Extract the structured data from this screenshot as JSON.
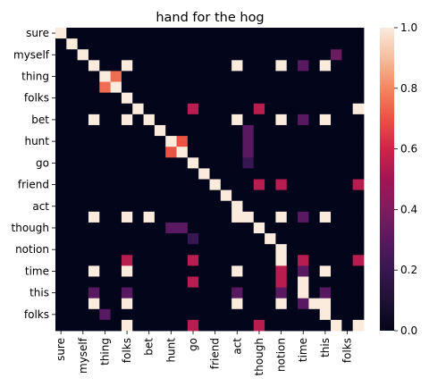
{
  "chart_data": {
    "type": "heatmap",
    "title": "hand for the hog",
    "xlabel": "",
    "ylabel": "",
    "row_labels": [
      "sure",
      "",
      "myself",
      "",
      "thing",
      "",
      "folks",
      "",
      "bet",
      "",
      "hunt",
      "",
      "go",
      "",
      "friend",
      "",
      "act",
      "",
      "though",
      "",
      "notion",
      "",
      "time",
      "",
      "this",
      "",
      "folks",
      ""
    ],
    "col_labels": [
      "sure",
      "",
      "myself",
      "",
      "thing",
      "",
      "folks",
      "",
      "bet",
      "",
      "hunt",
      "",
      "go",
      "",
      "friend",
      "",
      "act",
      "",
      "though",
      "",
      "notion",
      "",
      "time",
      "",
      "this",
      "",
      "folks",
      ""
    ],
    "values": [
      [
        1,
        0,
        0,
        0,
        0,
        0,
        0,
        0,
        0,
        0,
        0,
        0,
        0,
        0,
        0,
        0,
        0,
        0,
        0,
        0,
        0,
        0,
        0,
        0,
        0,
        0,
        0,
        0
      ],
      [
        0,
        1,
        0,
        0,
        0,
        0,
        0,
        0,
        0,
        0,
        0,
        0,
        0,
        0,
        0,
        0,
        0,
        0,
        0,
        0,
        0,
        0,
        0,
        0,
        0,
        0,
        0,
        0
      ],
      [
        0,
        0,
        1,
        0,
        0,
        0,
        0,
        0,
        0,
        0,
        0,
        0,
        0,
        0,
        0,
        0,
        0,
        0,
        0,
        0,
        0,
        0,
        0,
        0,
        0,
        0.35,
        0,
        0
      ],
      [
        0,
        0,
        0,
        1,
        0,
        0,
        1,
        0,
        0,
        0,
        0,
        0,
        0,
        0,
        0,
        0,
        1,
        0,
        0,
        0,
        1,
        0,
        0.3,
        0,
        1,
        0,
        0,
        0
      ],
      [
        0,
        0,
        0,
        0,
        1,
        0.75,
        0,
        0,
        0,
        0,
        0,
        0,
        0,
        0,
        0,
        0,
        0,
        0,
        0,
        0,
        0,
        0,
        0,
        0,
        0,
        0,
        0,
        0
      ],
      [
        0,
        0,
        0,
        0,
        0.75,
        1,
        0,
        0,
        0,
        0,
        0,
        0,
        0,
        0,
        0,
        0,
        0,
        0,
        0,
        0,
        0,
        0,
        0,
        0,
        0,
        0,
        0,
        0
      ],
      [
        0,
        0,
        0,
        0,
        0,
        0,
        1,
        0,
        0,
        0,
        0,
        0,
        0,
        0,
        0,
        0,
        0,
        0,
        0,
        0,
        0,
        0,
        0,
        0,
        0,
        0,
        0,
        0
      ],
      [
        0,
        0,
        0,
        0,
        0,
        0,
        0,
        1,
        0,
        0,
        0,
        0,
        0.55,
        0,
        0,
        0,
        0,
        0,
        0.55,
        0,
        0,
        0,
        0,
        0,
        0,
        0,
        0,
        1
      ],
      [
        0,
        0,
        0,
        1,
        0,
        0,
        1,
        0,
        1,
        0,
        0,
        0,
        0,
        0,
        0,
        0,
        1,
        0,
        0,
        0,
        1,
        0,
        0.3,
        0,
        1,
        0,
        0,
        0
      ],
      [
        0,
        0,
        0,
        0,
        0,
        0,
        0,
        0,
        0,
        1,
        0,
        0,
        0,
        0,
        0,
        0,
        0,
        0.3,
        0,
        0,
        0,
        0,
        0,
        0,
        0,
        0,
        0,
        0
      ],
      [
        0,
        0,
        0,
        0,
        0,
        0,
        0,
        0,
        0,
        0,
        1,
        0.7,
        0,
        0,
        0,
        0,
        0,
        0.3,
        0,
        0,
        0,
        0,
        0,
        0,
        0,
        0,
        0,
        0
      ],
      [
        0,
        0,
        0,
        0,
        0,
        0,
        0,
        0,
        0,
        0,
        0.7,
        1,
        0,
        0,
        0,
        0,
        0,
        0.3,
        0,
        0,
        0,
        0,
        0,
        0,
        0,
        0,
        0,
        0
      ],
      [
        0,
        0,
        0,
        0,
        0,
        0,
        0,
        0,
        0,
        0,
        0,
        0,
        1,
        0,
        0,
        0,
        0,
        0.2,
        0,
        0,
        0,
        0,
        0,
        0,
        0,
        0,
        0,
        0
      ],
      [
        0,
        0,
        0,
        0,
        0,
        0,
        0,
        0,
        0,
        0,
        0,
        0,
        0,
        1,
        0,
        0,
        0,
        0,
        0,
        0,
        0,
        0,
        0,
        0,
        0,
        0,
        0,
        0
      ],
      [
        0,
        0,
        0,
        0,
        0,
        0,
        0,
        0,
        0,
        0,
        0,
        0,
        0,
        0,
        1,
        0,
        0,
        0,
        0.55,
        0,
        0.55,
        0,
        0,
        0,
        0,
        0,
        0,
        0.55
      ],
      [
        0,
        0,
        0,
        0,
        0,
        0,
        0,
        0,
        0,
        0,
        0,
        0,
        0,
        0,
        0,
        1,
        0,
        0,
        0,
        0,
        0,
        0,
        0,
        0,
        0,
        0,
        0,
        0
      ],
      [
        0,
        0,
        0,
        0,
        0,
        0,
        0,
        0,
        0,
        0,
        0,
        0,
        0,
        0,
        0,
        0,
        1,
        0,
        0,
        0,
        0,
        0,
        0,
        0,
        0,
        0,
        0,
        0
      ],
      [
        0,
        0,
        0,
        1,
        0,
        0,
        1,
        0,
        1,
        0,
        0,
        0,
        0,
        0,
        0,
        0,
        1,
        1,
        0,
        0,
        1,
        0,
        0.3,
        0,
        1,
        0,
        0,
        0
      ],
      [
        0,
        0,
        0,
        0,
        0,
        0,
        0,
        0,
        0,
        0,
        0.3,
        0.3,
        0,
        0,
        0,
        0,
        0,
        0,
        1,
        0,
        0,
        0,
        0,
        0,
        0,
        0,
        0,
        0
      ],
      [
        0,
        0,
        0,
        0,
        0,
        0,
        0,
        0,
        0,
        0,
        0,
        0,
        0.2,
        0,
        0,
        0,
        0,
        0,
        0,
        1,
        0,
        0,
        0,
        0,
        0,
        0,
        0,
        0
      ],
      [
        0,
        0,
        0,
        0,
        0,
        0,
        0,
        0,
        0,
        0,
        0,
        0,
        0,
        0,
        0,
        0,
        0,
        0,
        0,
        0,
        1,
        0,
        0,
        0,
        0,
        0,
        0,
        0
      ],
      [
        0,
        0,
        0,
        0,
        0,
        0,
        0.55,
        0,
        0,
        0,
        0,
        0,
        0.55,
        0,
        0,
        0,
        0,
        0,
        0,
        0,
        1,
        0,
        0.55,
        0,
        0,
        0,
        0,
        0.55
      ],
      [
        0,
        0,
        0,
        1,
        0,
        0,
        1,
        0,
        0,
        0,
        0,
        0,
        0,
        0,
        0,
        0,
        1,
        0,
        0,
        0,
        0.55,
        0,
        0.3,
        0,
        1,
        0,
        0,
        0
      ],
      [
        0,
        0,
        0,
        0,
        0,
        0,
        0,
        0,
        0,
        0,
        0,
        0,
        0.55,
        0,
        0,
        0,
        0,
        0,
        0,
        0,
        0.55,
        0,
        1,
        0,
        0,
        0,
        0,
        0
      ],
      [
        0,
        0,
        0,
        0.3,
        0,
        0,
        0.3,
        0,
        0,
        0,
        0,
        0,
        0,
        0,
        0,
        0,
        0.3,
        0,
        0,
        0,
        0.3,
        0,
        1,
        0,
        0.3,
        0,
        0,
        0
      ],
      [
        0,
        0,
        0,
        1,
        0,
        0,
        1,
        0,
        0,
        0,
        0,
        0,
        0,
        0,
        0,
        0,
        1,
        0,
        0,
        0,
        1,
        0,
        0.3,
        1,
        1,
        0,
        0,
        0
      ],
      [
        0,
        0,
        0,
        0,
        0.3,
        0,
        0,
        0,
        0,
        0,
        0,
        0,
        0,
        0,
        0,
        0,
        0,
        0,
        0,
        0,
        0,
        0,
        0,
        0,
        1,
        0,
        0,
        0
      ],
      [
        0,
        0,
        0,
        0,
        0,
        0,
        1,
        0,
        0,
        0,
        0,
        0,
        0.55,
        0,
        0,
        0,
        0,
        0,
        0.55,
        0,
        0,
        0,
        0,
        0,
        0,
        1,
        0,
        1
      ]
    ],
    "vmin": 0,
    "vmax": 1,
    "colorbar_ticks": [
      "0.0",
      "0.2",
      "0.4",
      "0.6",
      "0.8",
      "1.0"
    ],
    "colormap": "rocket"
  }
}
